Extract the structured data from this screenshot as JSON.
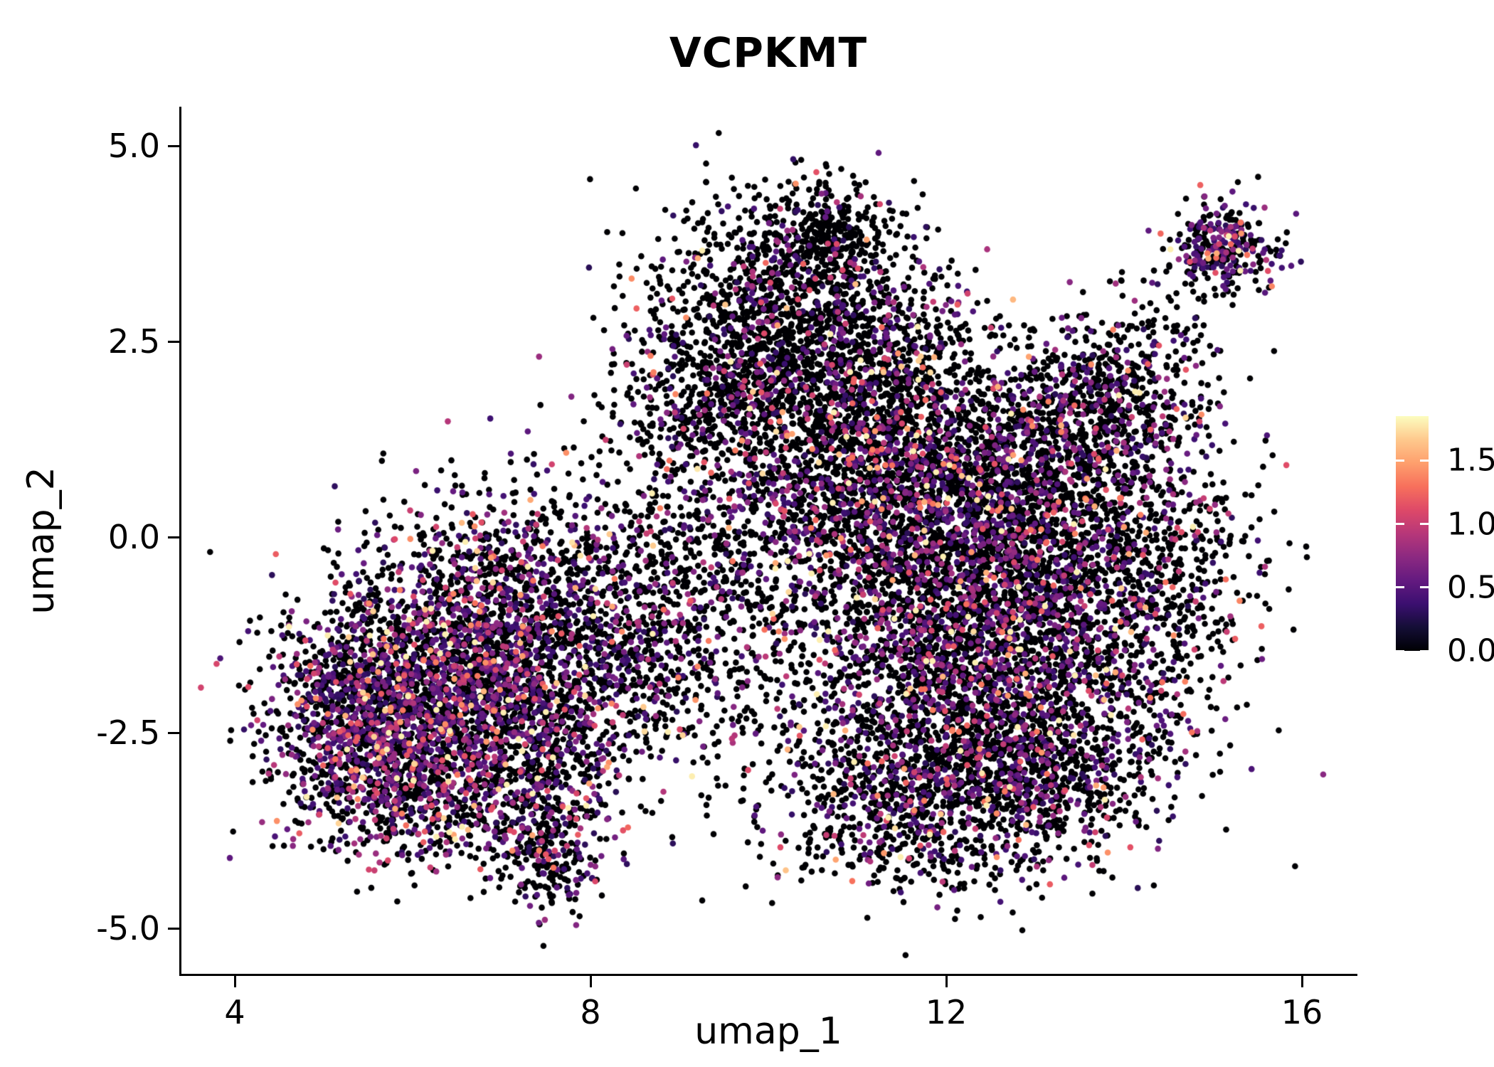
{
  "chart_data": {
    "type": "scatter",
    "title": "VCPKMT",
    "xlabel": "umap_1",
    "ylabel": "umap_2",
    "grid": false,
    "legend_position": "right",
    "background": "#ffffff",
    "axis_color": "#000000",
    "xlim": [
      3.4,
      16.6
    ],
    "ylim": [
      -5.59,
      5.5
    ],
    "x_ticks": [
      {
        "value": 4,
        "label": "4"
      },
      {
        "value": 8,
        "label": "8"
      },
      {
        "value": 12,
        "label": "12"
      },
      {
        "value": 16,
        "label": "16"
      }
    ],
    "y_ticks": [
      {
        "value": 5.0,
        "label": "5.0"
      },
      {
        "value": 2.5,
        "label": "2.5"
      },
      {
        "value": 0.0,
        "label": "0.0"
      },
      {
        "value": -2.5,
        "label": "-2.5"
      },
      {
        "value": -5.0,
        "label": "-5.0"
      }
    ],
    "colorbar": {
      "vmin": 0,
      "vmax": 1.85,
      "ticks": [
        {
          "value": 1.5,
          "label": "1.5"
        },
        {
          "value": 1.0,
          "label": "1.0"
        },
        {
          "value": 0.5,
          "label": "0.5"
        },
        {
          "value": 0.0,
          "label": "0.0"
        }
      ],
      "stops": [
        {
          "pos": 0.0,
          "color": "#000004"
        },
        {
          "pos": 0.1,
          "color": "#140e36"
        },
        {
          "pos": 0.2,
          "color": "#3b0f70"
        },
        {
          "pos": 0.3,
          "color": "#641a80"
        },
        {
          "pos": 0.4,
          "color": "#8c2981"
        },
        {
          "pos": 0.5,
          "color": "#b73779"
        },
        {
          "pos": 0.6,
          "color": "#de4968"
        },
        {
          "pos": 0.7,
          "color": "#f7705c"
        },
        {
          "pos": 0.8,
          "color": "#fe9f6d"
        },
        {
          "pos": 0.9,
          "color": "#fec98d"
        },
        {
          "pos": 1.0,
          "color": "#fcfdbf"
        }
      ]
    },
    "seed": 42,
    "clusters": [
      {
        "cx": 5.9,
        "cy": -2.3,
        "sx": 0.75,
        "sy": 0.75,
        "n": 1500,
        "frac": 0.45
      },
      {
        "cx": 6.9,
        "cy": -1.5,
        "sx": 0.75,
        "sy": 0.65,
        "n": 1100,
        "frac": 0.42
      },
      {
        "cx": 5.35,
        "cy": -2.2,
        "sx": 0.45,
        "sy": 0.75,
        "n": 450,
        "frac": 0.45
      },
      {
        "cx": 6.3,
        "cy": -3.3,
        "sx": 0.7,
        "sy": 0.45,
        "n": 450,
        "frac": 0.4
      },
      {
        "cx": 7.5,
        "cy": -2.6,
        "sx": 0.55,
        "sy": 0.6,
        "n": 450,
        "frac": 0.38
      },
      {
        "cx": 7.55,
        "cy": -4.05,
        "sx": 0.3,
        "sy": 0.4,
        "n": 240,
        "frac": 0.35
      },
      {
        "cx": 7.2,
        "cy": -0.4,
        "sx": 0.85,
        "sy": 0.6,
        "n": 600,
        "frac": 0.32
      },
      {
        "cx": 8.4,
        "cy": -1.6,
        "sx": 0.6,
        "sy": 0.8,
        "n": 420,
        "frac": 0.3
      },
      {
        "cx": 10.2,
        "cy": 2.9,
        "sx": 0.75,
        "sy": 0.7,
        "n": 1000,
        "frac": 0.17
      },
      {
        "cx": 9.6,
        "cy": 1.8,
        "sx": 0.7,
        "sy": 0.6,
        "n": 700,
        "frac": 0.2
      },
      {
        "cx": 10.6,
        "cy": 3.9,
        "sx": 0.45,
        "sy": 0.33,
        "n": 280,
        "frac": 0.15
      },
      {
        "cx": 11.2,
        "cy": 2.2,
        "sx": 0.6,
        "sy": 0.7,
        "n": 500,
        "frac": 0.22
      },
      {
        "cx": 9.2,
        "cy": -0.6,
        "sx": 0.6,
        "sy": 0.9,
        "n": 380,
        "frac": 0.28
      },
      {
        "cx": 10.2,
        "cy": 0.3,
        "sx": 0.7,
        "sy": 0.8,
        "n": 500,
        "frac": 0.3
      },
      {
        "cx": 12.2,
        "cy": -1.6,
        "sx": 1.15,
        "sy": 1.0,
        "n": 2400,
        "frac": 0.3
      },
      {
        "cx": 12.0,
        "cy": 0.6,
        "sx": 0.95,
        "sy": 0.8,
        "n": 1300,
        "frac": 0.3
      },
      {
        "cx": 13.3,
        "cy": 1.3,
        "sx": 0.8,
        "sy": 0.7,
        "n": 800,
        "frac": 0.28
      },
      {
        "cx": 14.2,
        "cy": -0.6,
        "sx": 0.65,
        "sy": 0.9,
        "n": 650,
        "frac": 0.25
      },
      {
        "cx": 11.7,
        "cy": -3.4,
        "sx": 0.9,
        "sy": 0.55,
        "n": 800,
        "frac": 0.3
      },
      {
        "cx": 13.1,
        "cy": -2.9,
        "sx": 0.75,
        "sy": 0.55,
        "n": 650,
        "frac": 0.28
      },
      {
        "cx": 13.9,
        "cy": 2.0,
        "sx": 0.5,
        "sy": 0.45,
        "n": 300,
        "frac": 0.25
      },
      {
        "cx": 11.3,
        "cy": 1.2,
        "sx": 0.6,
        "sy": 0.8,
        "n": 600,
        "frac": 0.3
      },
      {
        "cx": 12.6,
        "cy": -0.4,
        "sx": 0.8,
        "sy": 0.8,
        "n": 900,
        "frac": 0.3
      },
      {
        "cx": 15.1,
        "cy": 3.7,
        "sx": 0.3,
        "sy": 0.28,
        "n": 300,
        "frac": 0.5
      },
      {
        "cx": 14.4,
        "cy": 2.9,
        "sx": 0.35,
        "sy": 0.35,
        "n": 40,
        "frac": 0.2
      }
    ]
  }
}
